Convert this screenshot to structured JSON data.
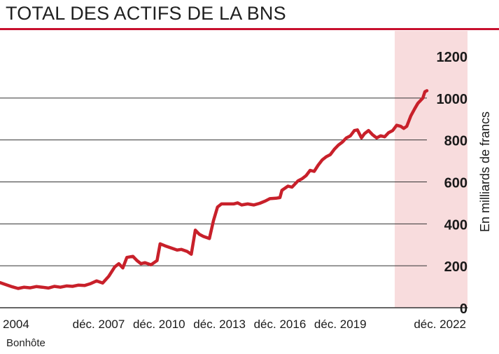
{
  "header": {
    "title": "TOTAL DES ACTIFS DE LA BNS"
  },
  "footer": {
    "source": "Bonhôte"
  },
  "colors": {
    "accent": "#c8102e",
    "line": "#c8202a",
    "forecast_band": "#f8dcdd",
    "grid": "#333333"
  },
  "chart_data": {
    "type": "line",
    "title": "TOTAL DES ACTIFS DE LA BNS",
    "xlabel": "",
    "ylabel": "En milliards de francs",
    "xlim": [
      2003.0,
      2024.2
    ],
    "ylim": [
      0,
      1200
    ],
    "yticks": [
      0,
      200,
      400,
      600,
      800,
      1000,
      1200
    ],
    "xtick_labels": [
      {
        "x": 2004.0,
        "label": "2004"
      },
      {
        "x": 2007.9,
        "label": "déc. 2007"
      },
      {
        "x": 2010.9,
        "label": "déc. 2010"
      },
      {
        "x": 2013.9,
        "label": "déc. 2013"
      },
      {
        "x": 2016.9,
        "label": "déc. 2016"
      },
      {
        "x": 2019.9,
        "label": "déc. 2019"
      },
      {
        "x": 2022.9,
        "label": "déc. 2022"
      }
    ],
    "grid": true,
    "shaded_region": {
      "x0": 2022.6,
      "x1": 2024.2
    },
    "series": [
      {
        "name": "",
        "points": [
          [
            2003.0,
            120
          ],
          [
            2003.3,
            110
          ],
          [
            2003.6,
            100
          ],
          [
            2003.9,
            92
          ],
          [
            2004.2,
            98
          ],
          [
            2004.5,
            95
          ],
          [
            2004.8,
            101
          ],
          [
            2005.1,
            98
          ],
          [
            2005.4,
            94
          ],
          [
            2005.7,
            102
          ],
          [
            2006.0,
            98
          ],
          [
            2006.3,
            104
          ],
          [
            2006.6,
            102
          ],
          [
            2006.9,
            108
          ],
          [
            2007.2,
            106
          ],
          [
            2007.5,
            115
          ],
          [
            2007.8,
            128
          ],
          [
            2008.1,
            118
          ],
          [
            2008.4,
            150
          ],
          [
            2008.7,
            195
          ],
          [
            2008.9,
            210
          ],
          [
            2009.1,
            190
          ],
          [
            2009.3,
            240
          ],
          [
            2009.6,
            245
          ],
          [
            2009.8,
            225
          ],
          [
            2010.0,
            210
          ],
          [
            2010.2,
            215
          ],
          [
            2010.5,
            205
          ],
          [
            2010.8,
            225
          ],
          [
            2010.95,
            305
          ],
          [
            2011.2,
            295
          ],
          [
            2011.5,
            285
          ],
          [
            2011.8,
            275
          ],
          [
            2012.0,
            278
          ],
          [
            2012.3,
            268
          ],
          [
            2012.5,
            255
          ],
          [
            2012.7,
            370
          ],
          [
            2012.9,
            350
          ],
          [
            2013.1,
            340
          ],
          [
            2013.4,
            330
          ],
          [
            2013.6,
            415
          ],
          [
            2013.8,
            480
          ],
          [
            2014.0,
            495
          ],
          [
            2014.3,
            495
          ],
          [
            2014.6,
            495
          ],
          [
            2014.8,
            500
          ],
          [
            2015.0,
            490
          ],
          [
            2015.3,
            495
          ],
          [
            2015.6,
            490
          ],
          [
            2015.9,
            498
          ],
          [
            2016.2,
            510
          ],
          [
            2016.4,
            520
          ],
          [
            2016.7,
            522
          ],
          [
            2016.9,
            525
          ],
          [
            2017.0,
            560
          ],
          [
            2017.3,
            580
          ],
          [
            2017.5,
            575
          ],
          [
            2017.8,
            605
          ],
          [
            2018.0,
            615
          ],
          [
            2018.2,
            630
          ],
          [
            2018.4,
            655
          ],
          [
            2018.6,
            650
          ],
          [
            2018.8,
            680
          ],
          [
            2019.0,
            705
          ],
          [
            2019.2,
            720
          ],
          [
            2019.4,
            730
          ],
          [
            2019.6,
            755
          ],
          [
            2019.8,
            775
          ],
          [
            2020.0,
            790
          ],
          [
            2020.2,
            810
          ],
          [
            2020.4,
            820
          ],
          [
            2020.6,
            845
          ],
          [
            2020.75,
            848
          ],
          [
            2020.95,
            810
          ],
          [
            2021.1,
            830
          ],
          [
            2021.3,
            845
          ],
          [
            2021.5,
            825
          ],
          [
            2021.7,
            810
          ],
          [
            2021.9,
            820
          ],
          [
            2022.1,
            815
          ],
          [
            2022.3,
            835
          ],
          [
            2022.5,
            845
          ],
          [
            2022.7,
            870
          ],
          [
            2022.9,
            865
          ],
          [
            2023.05,
            855
          ],
          [
            2023.2,
            865
          ],
          [
            2023.4,
            915
          ],
          [
            2023.6,
            950
          ],
          [
            2023.75,
            975
          ],
          [
            2023.9,
            990
          ],
          [
            2024.0,
            1000
          ],
          [
            2024.1,
            1030
          ],
          [
            2024.2,
            1035
          ]
        ]
      }
    ]
  }
}
